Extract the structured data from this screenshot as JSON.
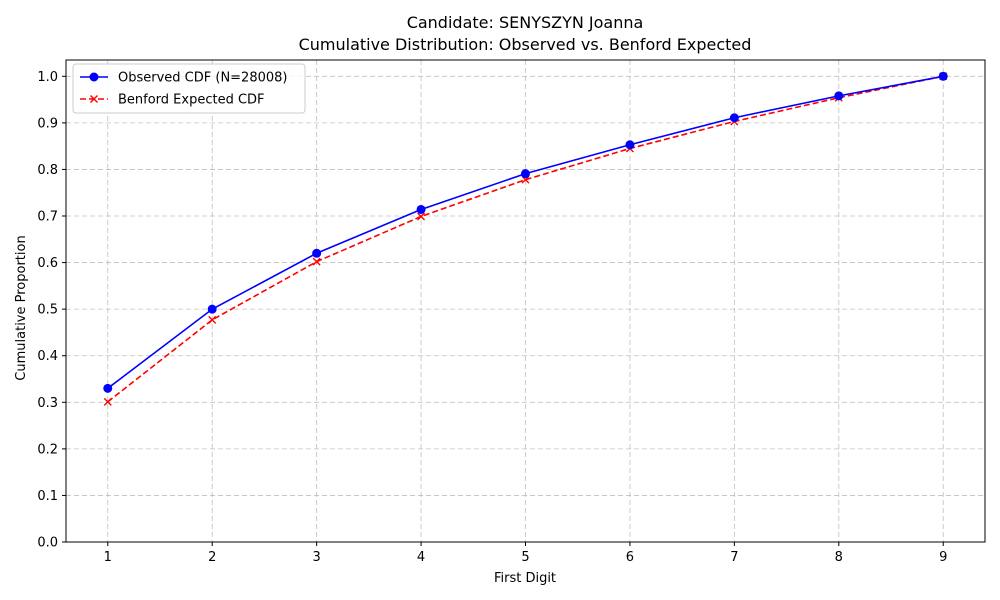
{
  "chart_data": {
    "type": "line",
    "title_line1": "Candidate: SENYSZYN Joanna",
    "title_line2": "Cumulative Distribution: Observed vs. Benford Expected",
    "xlabel": "First Digit",
    "ylabel": "Cumulative Proportion",
    "x": [
      1,
      2,
      3,
      4,
      5,
      6,
      7,
      8,
      9
    ],
    "x_tick_labels": [
      "1",
      "2",
      "3",
      "4",
      "5",
      "6",
      "7",
      "8",
      "9"
    ],
    "y_tick_labels": [
      "0.0",
      "0.1",
      "0.2",
      "0.3",
      "0.4",
      "0.5",
      "0.6",
      "0.7",
      "0.8",
      "0.9",
      "1.0"
    ],
    "xlim": [
      0.6,
      9.4
    ],
    "ylim": [
      0.0,
      1.035
    ],
    "grid": true,
    "legend_position": "upper-left",
    "series": [
      {
        "name": "Observed CDF (N=28008)",
        "values": [
          0.33,
          0.5,
          0.62,
          0.714,
          0.791,
          0.853,
          0.911,
          0.958,
          1.0
        ],
        "color": "#0000ff",
        "line_style": "solid",
        "marker": "circle"
      },
      {
        "name": "Benford Expected CDF",
        "values": [
          0.301,
          0.477,
          0.602,
          0.699,
          0.778,
          0.845,
          0.903,
          0.954,
          1.0
        ],
        "color": "#ff0000",
        "line_style": "dashed",
        "marker": "x"
      }
    ]
  }
}
